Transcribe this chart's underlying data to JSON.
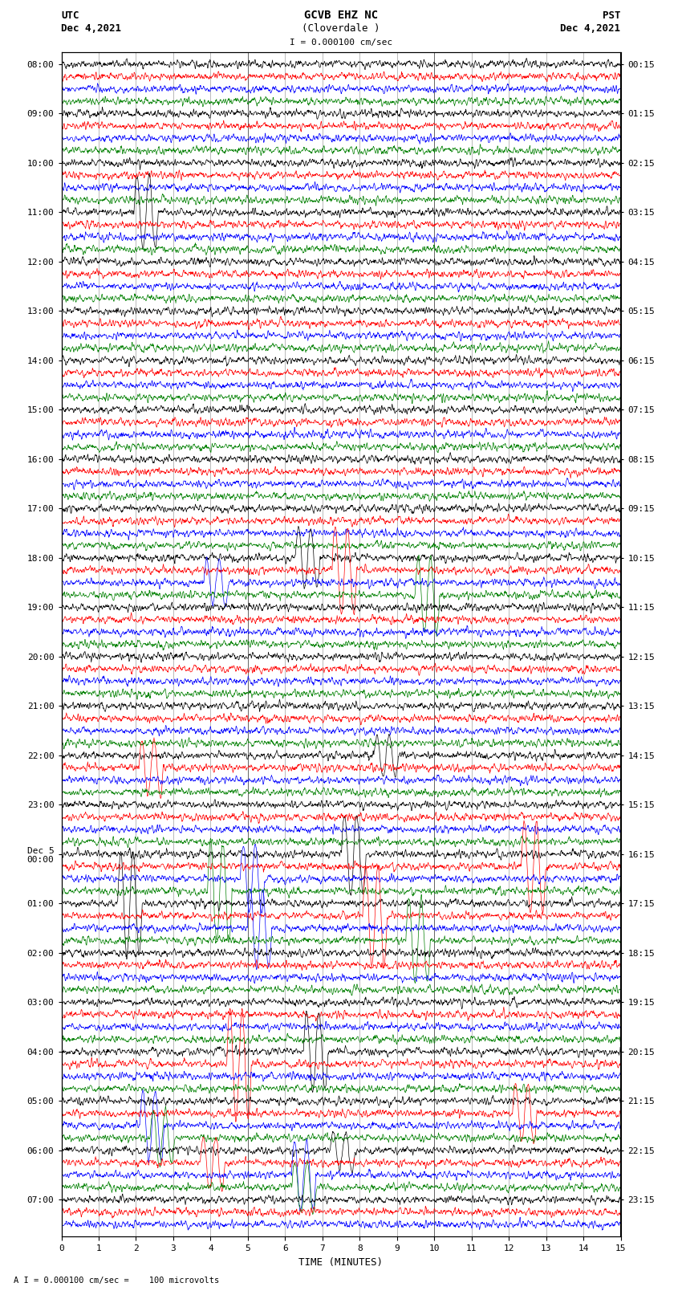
{
  "title_line1": "GCVB EHZ NC",
  "title_line2": "(Cloverdale )",
  "scale_label": "I = 0.000100 cm/sec",
  "bottom_label": "A I = 0.000100 cm/sec =    100 microvolts",
  "utc_label": "UTC",
  "utc_date": "Dec 4,2021",
  "pst_label": "PST",
  "pst_date": "Dec 4,2021",
  "xlabel": "TIME (MINUTES)",
  "xmin": 0,
  "xmax": 15,
  "background_color": "#ffffff",
  "trace_colors": [
    "black",
    "red",
    "blue",
    "green"
  ],
  "utc_times": [
    "08:00",
    "",
    "",
    "",
    "09:00",
    "",
    "",
    "",
    "10:00",
    "",
    "",
    "",
    "11:00",
    "",
    "",
    "",
    "12:00",
    "",
    "",
    "",
    "13:00",
    "",
    "",
    "",
    "14:00",
    "",
    "",
    "",
    "15:00",
    "",
    "",
    "",
    "16:00",
    "",
    "",
    "",
    "17:00",
    "",
    "",
    "",
    "18:00",
    "",
    "",
    "",
    "19:00",
    "",
    "",
    "",
    "20:00",
    "",
    "",
    "",
    "21:00",
    "",
    "",
    "",
    "22:00",
    "",
    "",
    "",
    "23:00",
    "",
    "",
    "",
    "Dec 5\n00:00",
    "",
    "",
    "",
    "01:00",
    "",
    "",
    "",
    "02:00",
    "",
    "",
    "",
    "03:00",
    "",
    "",
    "",
    "04:00",
    "",
    "",
    "",
    "05:00",
    "",
    "",
    "",
    "06:00",
    "",
    "",
    "",
    "07:00",
    "",
    ""
  ],
  "pst_times": [
    "00:15",
    "",
    "",
    "",
    "01:15",
    "",
    "",
    "",
    "02:15",
    "",
    "",
    "",
    "03:15",
    "",
    "",
    "",
    "04:15",
    "",
    "",
    "",
    "05:15",
    "",
    "",
    "",
    "06:15",
    "",
    "",
    "",
    "07:15",
    "",
    "",
    "",
    "08:15",
    "",
    "",
    "",
    "09:15",
    "",
    "",
    "",
    "10:15",
    "",
    "",
    "",
    "11:15",
    "",
    "",
    "",
    "12:15",
    "",
    "",
    "",
    "13:15",
    "",
    "",
    "",
    "14:15",
    "",
    "",
    "",
    "15:15",
    "",
    "",
    "",
    "16:15",
    "",
    "",
    "",
    "17:15",
    "",
    "",
    "",
    "18:15",
    "",
    "",
    "",
    "19:15",
    "",
    "",
    "",
    "20:15",
    "",
    "",
    "",
    "21:15",
    "",
    "",
    "",
    "22:15",
    "",
    "",
    "",
    "23:15",
    "",
    ""
  ],
  "noise_scale": 0.28,
  "event_rows": [
    12,
    40,
    41,
    42,
    43,
    56,
    57,
    64,
    65,
    66,
    67,
    68,
    69,
    70,
    71,
    80,
    81,
    85,
    86,
    87,
    88,
    89,
    90,
    91
  ],
  "grid_color": "#888888",
  "grid_linewidth": 0.4,
  "trace_linewidth": 0.5,
  "title_fontsize": 10,
  "label_fontsize": 9,
  "tick_fontsize": 8
}
